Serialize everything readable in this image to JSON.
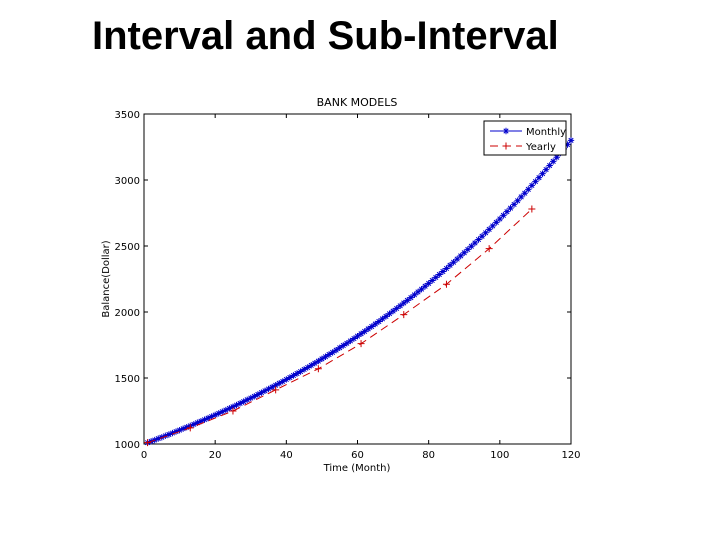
{
  "slide": {
    "title": "Interval and Sub-Interval"
  },
  "chart_data": {
    "type": "line",
    "title": "BANK MODELS",
    "xlabel": "Time (Month)",
    "ylabel": "Balance(Dollar)",
    "xlim": [
      0,
      120
    ],
    "ylim": [
      1000,
      3500
    ],
    "xticks": [
      0,
      20,
      40,
      60,
      80,
      100,
      120
    ],
    "yticks": [
      1000,
      1500,
      2000,
      2500,
      3000,
      3500
    ],
    "grid": false,
    "legend_position": "top-right",
    "series": [
      {
        "name": "Monthly",
        "color": "#0000cc",
        "line": "solid",
        "marker": "asterisk",
        "x": [
          1,
          2,
          3,
          4,
          5,
          6,
          7,
          8,
          9,
          10,
          11,
          12,
          13,
          14,
          15,
          16,
          17,
          18,
          19,
          20,
          21,
          22,
          23,
          24,
          25,
          26,
          27,
          28,
          29,
          30,
          31,
          32,
          33,
          34,
          35,
          36,
          37,
          38,
          39,
          40,
          41,
          42,
          43,
          44,
          45,
          46,
          47,
          48,
          49,
          50,
          51,
          52,
          53,
          54,
          55,
          56,
          57,
          58,
          59,
          60,
          61,
          62,
          63,
          64,
          65,
          66,
          67,
          68,
          69,
          70,
          71,
          72,
          73,
          74,
          75,
          76,
          77,
          78,
          79,
          80,
          81,
          82,
          83,
          84,
          85,
          86,
          87,
          88,
          89,
          90,
          91,
          92,
          93,
          94,
          95,
          96,
          97,
          98,
          99,
          100,
          101,
          102,
          103,
          104,
          105,
          106,
          107,
          108,
          109,
          110,
          111,
          112,
          113,
          114,
          115,
          116,
          117,
          118,
          119,
          120
        ],
        "values": [
          1010,
          1020,
          1030,
          1041,
          1051,
          1062,
          1072,
          1083,
          1094,
          1105,
          1116,
          1127,
          1138,
          1149,
          1161,
          1173,
          1184,
          1196,
          1208,
          1220,
          1232,
          1245,
          1257,
          1270,
          1282,
          1295,
          1308,
          1321,
          1335,
          1348,
          1361,
          1375,
          1389,
          1403,
          1417,
          1431,
          1445,
          1460,
          1474,
          1489,
          1504,
          1519,
          1534,
          1549,
          1565,
          1580,
          1596,
          1612,
          1628,
          1645,
          1661,
          1678,
          1694,
          1711,
          1729,
          1746,
          1763,
          1781,
          1799,
          1817,
          1835,
          1853,
          1872,
          1890,
          1909,
          1928,
          1948,
          1967,
          1987,
          2007,
          2027,
          2047,
          2068,
          2088,
          2109,
          2130,
          2152,
          2173,
          2195,
          2217,
          2239,
          2262,
          2284,
          2307,
          2330,
          2354,
          2377,
          2401,
          2425,
          2449,
          2474,
          2498,
          2523,
          2549,
          2574,
          2600,
          2626,
          2652,
          2679,
          2705,
          2732,
          2760,
          2787,
          2815,
          2843,
          2872,
          2900,
          2929,
          2959,
          2988,
          3018,
          3048,
          3079,
          3110,
          3141,
          3172,
          3204,
          3236,
          3268,
          3300
        ]
      },
      {
        "name": "Yearly",
        "color": "#cc0000",
        "line": "dashed",
        "marker": "plus",
        "x": [
          1,
          13,
          25,
          37,
          49,
          61,
          73,
          85,
          97,
          109
        ],
        "values": [
          1010,
          1122,
          1250,
          1410,
          1570,
          1760,
          1980,
          2210,
          2480,
          2780
        ]
      }
    ]
  }
}
